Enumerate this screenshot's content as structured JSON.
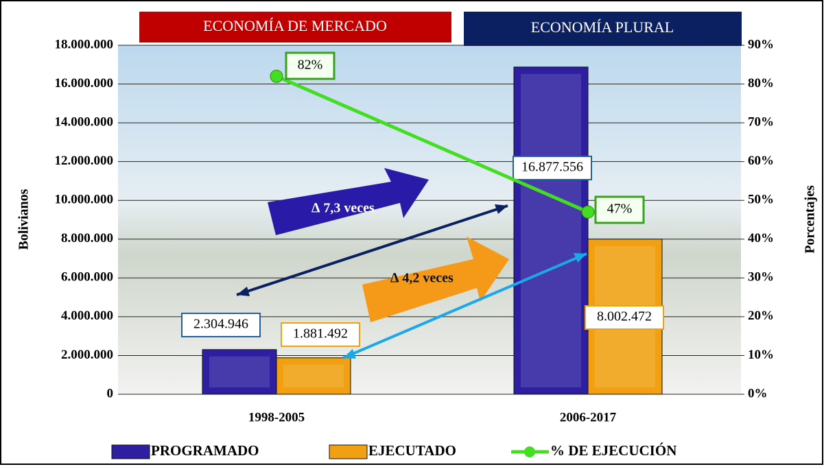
{
  "chart_data": {
    "type": "bar",
    "headers": [
      "ECONOMÍA DE MERCADO",
      "ECONOMÍA PLURAL"
    ],
    "y_label": "Bolivianos",
    "y2_label": "Porcentajes",
    "annotations": [
      "∆ 7,3 veces",
      "∆ 4,2 veces"
    ],
    "categories": [
      "1998-2005",
      "2006-2017"
    ],
    "series": [
      {
        "name": "PROGRAMADO",
        "color": "#2e1fa0",
        "values": [
          2304946,
          16877556
        ],
        "value_labels": [
          "2.304.946",
          "16.877.556"
        ]
      },
      {
        "name": "EJECUTADO",
        "color": "#f0a010",
        "values": [
          1881492,
          8002472
        ],
        "value_labels": [
          "1.881.492",
          "8.002.472"
        ]
      },
      {
        "name": "% DE EJECUCIÓN",
        "type": "line",
        "axis": "y2",
        "color": "#44dd22",
        "values": [
          82,
          47
        ],
        "value_labels": [
          "82%",
          "47%"
        ]
      }
    ],
    "ylim": [
      0,
      18000000
    ],
    "yticks": [
      0,
      {
        "value": 2000000,
        "label": "2.000.000"
      },
      {
        "value": 4000000,
        "label": "4.000.000"
      },
      {
        "value": 6000000,
        "label": "6.000.000"
      },
      {
        "value": 8000000,
        "label": "8.000.000"
      },
      {
        "value": 10000000,
        "label": "10.000.000"
      },
      {
        "value": 12000000,
        "label": "12.000.000"
      },
      {
        "value": 14000000,
        "label": "14.000.000"
      },
      {
        "value": 16000000,
        "label": "16.000.000"
      },
      {
        "value": 18000000,
        "label": "18.000.000"
      }
    ],
    "y2lim": [
      0,
      90
    ],
    "y2ticks": [
      {
        "value": 0,
        "label": "0%"
      },
      {
        "value": 10,
        "label": "10%"
      },
      {
        "value": 20,
        "label": "20%"
      },
      {
        "value": 30,
        "label": "30%"
      },
      {
        "value": 40,
        "label": "40%"
      },
      {
        "value": 50,
        "label": "50%"
      },
      {
        "value": 60,
        "label": "60%"
      },
      {
        "value": 70,
        "label": "70%"
      },
      {
        "value": 80,
        "label": "80%"
      },
      {
        "value": 90,
        "label": "90%"
      }
    ],
    "grid": true
  }
}
